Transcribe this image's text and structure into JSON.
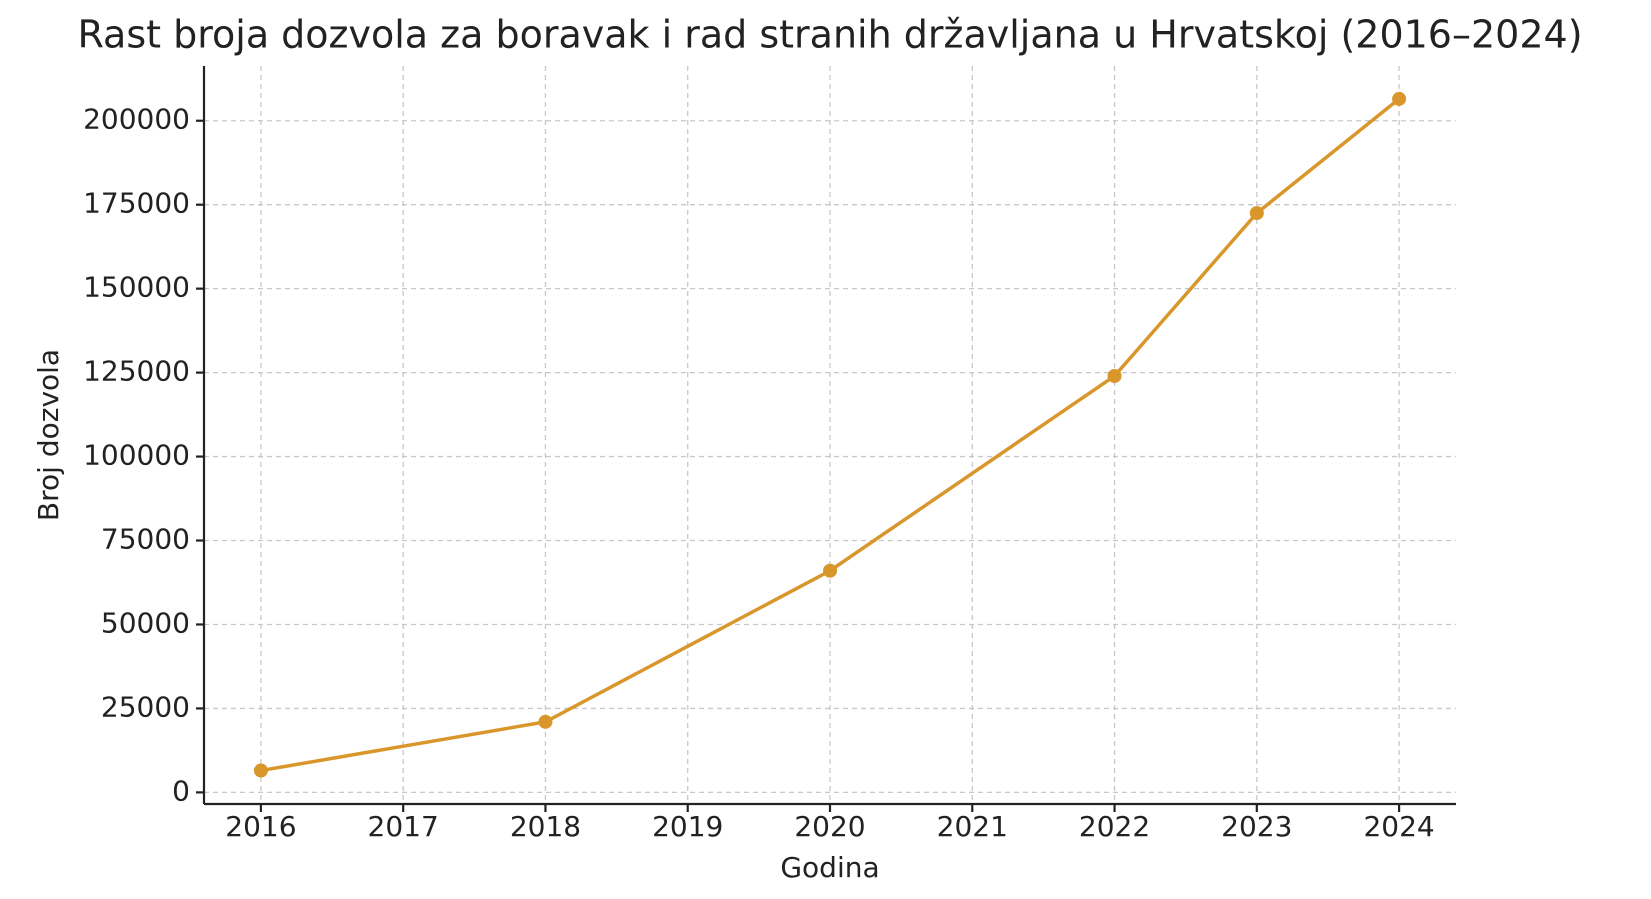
{
  "chart_data": {
    "type": "line",
    "title": "Rast broja dozvola za boravak i rad stranih državljana u Hrvatskoj (2016–2024)",
    "x_label": "Godina",
    "y_label": "Broj dozvola",
    "x": [
      2016,
      2018,
      2020,
      2022,
      2023,
      2024
    ],
    "series": [
      {
        "name": "Broj dozvola",
        "color": "#d9962b",
        "values": [
          6500,
          21000,
          66000,
          124000,
          172500,
          206500
        ]
      }
    ],
    "xlim": [
      2015.6,
      2024.4
    ],
    "xticks": [
      2016,
      2017,
      2018,
      2019,
      2020,
      2021,
      2022,
      2023,
      2024
    ],
    "ylim": [
      -3460,
      216300
    ],
    "yticks": [
      0,
      25000,
      50000,
      75000,
      100000,
      125000,
      150000,
      175000,
      200000
    ],
    "grid": true
  }
}
